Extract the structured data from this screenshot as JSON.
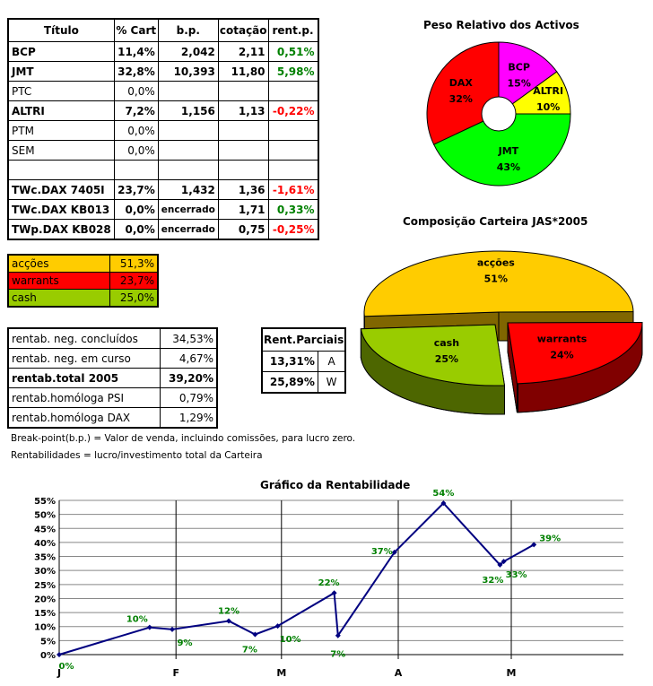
{
  "holdings": {
    "headers": [
      "Título",
      "% Cart",
      "b.p.",
      "cotação",
      "rent.p."
    ],
    "rows": [
      {
        "titulo": "BCP",
        "cart": "11,4%",
        "bp": "2,042",
        "cot": "2,11",
        "rent": "0,51%",
        "bold": true,
        "sign": "pos"
      },
      {
        "titulo": "JMT",
        "cart": "32,8%",
        "bp": "10,393",
        "cot": "11,80",
        "rent": "5,98%",
        "bold": true,
        "sign": "pos"
      },
      {
        "titulo": "PTC",
        "cart": "0,0%",
        "bp": "",
        "cot": "",
        "rent": "",
        "bold": false,
        "sign": ""
      },
      {
        "titulo": "ALTRI",
        "cart": "7,2%",
        "bp": "1,156",
        "cot": "1,13",
        "rent": "-0,22%",
        "bold": true,
        "sign": "neg"
      },
      {
        "titulo": "PTM",
        "cart": "0,0%",
        "bp": "",
        "cot": "",
        "rent": "",
        "bold": false,
        "sign": ""
      },
      {
        "titulo": "SEM",
        "cart": "0,0%",
        "bp": "",
        "cot": "",
        "rent": "",
        "bold": false,
        "sign": ""
      },
      {
        "titulo": "",
        "cart": "",
        "bp": "",
        "cot": "",
        "rent": "",
        "bold": false,
        "sign": ""
      },
      {
        "titulo": "TWc.DAX 7405I",
        "cart": "23,7%",
        "bp": "1,432",
        "cot": "1,36",
        "rent": "-1,61%",
        "bold": true,
        "sign": "neg"
      },
      {
        "titulo": "TWc.DAX KB013",
        "cart": "0,0%",
        "bp": "encerrado",
        "cot": "1,71",
        "rent": "0,33%",
        "bold": true,
        "sign": "pos"
      },
      {
        "titulo": "TWp.DAX KB028",
        "cart": "0,0%",
        "bp": "encerrado",
        "cot": "0,75",
        "rent": "-0,25%",
        "bold": true,
        "sign": "neg"
      }
    ]
  },
  "allocation": [
    {
      "label": "acções",
      "value": "51,3%",
      "color": "#ffcc00"
    },
    {
      "label": "warrants",
      "value": "23,7%",
      "color": "#ff0000"
    },
    {
      "label": "cash",
      "value": "25,0%",
      "color": "#99cc00"
    }
  ],
  "rentab": [
    {
      "label": "rentab. neg. concluídos",
      "value": "34,53%",
      "bold": false
    },
    {
      "label": "rentab. neg. em curso",
      "value": "4,67%",
      "bold": false
    },
    {
      "label": "rentab.total 2005",
      "value": "39,20%",
      "bold": true
    },
    {
      "label": "rentab.homóloga PSI",
      "value": "0,79%",
      "bold": false
    },
    {
      "label": "rentab.homóloga DAX",
      "value": "1,29%",
      "bold": false
    }
  ],
  "parciais": {
    "header": "Rent.Parciais",
    "rows": [
      {
        "value": "13,31%",
        "code": "A"
      },
      {
        "value": "25,89%",
        "code": "W"
      }
    ]
  },
  "notes": [
    "Break-point(b.p.) = Valor de venda, incluindo comissões, para lucro zero.",
    "Rentabilidades = lucro/investimento total da Carteira"
  ],
  "chart_data": [
    {
      "type": "pie",
      "title": "Peso Relativo dos Activos",
      "style": "doughnut",
      "slices": [
        {
          "label": "BCP",
          "value": 15,
          "text": "15%",
          "color": "#ff00ff"
        },
        {
          "label": "ALTRI",
          "value": 10,
          "text": "10%",
          "color": "#ffff00"
        },
        {
          "label": "JMT",
          "value": 43,
          "text": "43%",
          "color": "#00ff00"
        },
        {
          "label": "DAX",
          "value": 32,
          "text": "32%",
          "color": "#ff0000"
        }
      ]
    },
    {
      "type": "pie",
      "title": "Composição Carteira JAS*2005",
      "style": "3d-exploded",
      "slices": [
        {
          "label": "acções",
          "value": 51,
          "text": "51%",
          "color": "#ffcc00",
          "side": "#806600"
        },
        {
          "label": "warrants",
          "value": 24,
          "text": "24%",
          "color": "#ff0000",
          "side": "#800000"
        },
        {
          "label": "cash",
          "value": 25,
          "text": "25%",
          "color": "#99cc00",
          "side": "#4d6600"
        }
      ]
    },
    {
      "type": "line",
      "title": "Gráfico da Rentabilidade",
      "ylim": [
        0,
        55
      ],
      "yticks": [
        "0%",
        "5%",
        "10%",
        "15%",
        "20%",
        "25%",
        "30%",
        "35%",
        "40%",
        "45%",
        "50%",
        "55%"
      ],
      "xticks": [
        {
          "label": "J",
          "date": "2005-01-01"
        },
        {
          "label": "F",
          "date": "2005-02-01"
        },
        {
          "label": "M",
          "date": "2005-03-01"
        },
        {
          "label": "A",
          "date": "2005-04-01"
        },
        {
          "label": "M",
          "date": "2005-05-01"
        }
      ],
      "grid": true,
      "color": "#000080",
      "label_color": "#008000",
      "points": [
        {
          "date": "2005-01-01",
          "y": 0,
          "label": "0%"
        },
        {
          "date": "2005-01-25",
          "y": 9.7,
          "label": "10%"
        },
        {
          "date": "2005-01-31",
          "y": 9,
          "label": "9%"
        },
        {
          "date": "2005-02-15",
          "y": 12,
          "label": "12%"
        },
        {
          "date": "2005-02-22",
          "y": 7.2,
          "label": "7%"
        },
        {
          "date": "2005-02-28",
          "y": 10.2,
          "label": "10%"
        },
        {
          "date": "2005-03-15",
          "y": 22,
          "label": "22%"
        },
        {
          "date": "2005-03-16",
          "y": 6.8,
          "label": "7%"
        },
        {
          "date": "2005-03-31",
          "y": 36.5,
          "label": "37%"
        },
        {
          "date": "2005-04-13",
          "y": 54,
          "label": "54%"
        },
        {
          "date": "2005-04-28",
          "y": 32,
          "label": "32%"
        },
        {
          "date": "2005-04-29",
          "y": 33.2,
          "label": "33%"
        },
        {
          "date": "2005-05-07",
          "y": 39.2,
          "label": "39%"
        }
      ]
    }
  ]
}
